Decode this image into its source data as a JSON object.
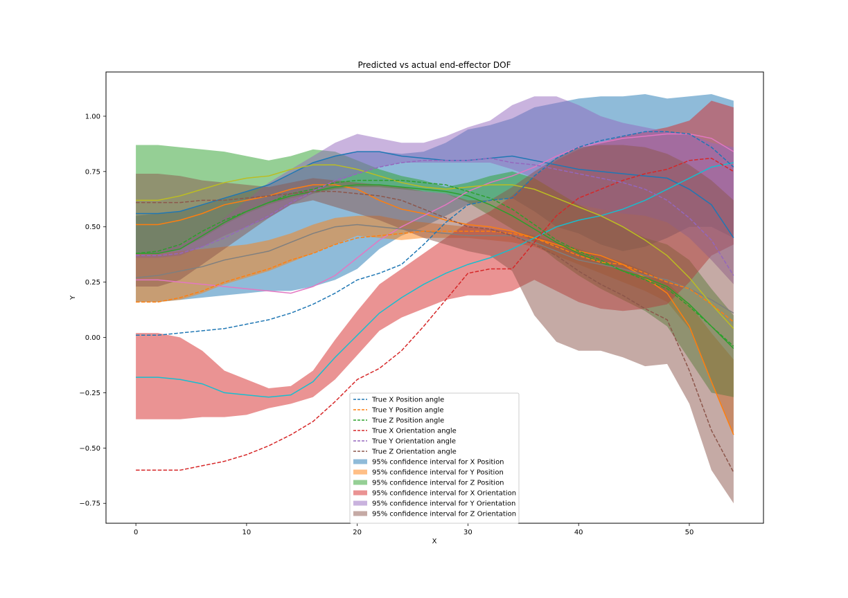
{
  "chart_data": {
    "type": "line",
    "title": "Predicted vs actual end-effector DOF",
    "xlabel": "X",
    "ylabel": "Y",
    "xlim": [
      -2.7,
      56.7
    ],
    "ylim": [
      -0.84,
      1.2
    ],
    "xticks": [
      0,
      10,
      20,
      30,
      40,
      50
    ],
    "yticks": [
      -0.75,
      -0.5,
      -0.25,
      0.0,
      0.25,
      0.5,
      0.75,
      1.0
    ],
    "xtick_labels": [
      "0",
      "10",
      "20",
      "30",
      "40",
      "50"
    ],
    "ytick_labels": [
      "−0.75",
      "−0.50",
      "−0.25",
      "0.00",
      "0.25",
      "0.50",
      "0.75",
      "1.00"
    ],
    "grid": false,
    "legend_placement": "lower-center",
    "x": [
      0,
      2,
      4,
      6,
      8,
      10,
      12,
      14,
      16,
      18,
      20,
      22,
      24,
      26,
      28,
      30,
      32,
      34,
      36,
      38,
      40,
      42,
      44,
      46,
      48,
      50,
      52,
      54
    ],
    "true_series": [
      {
        "name": "True X Position angle",
        "color": "#1f77b4",
        "values": [
          0.01,
          0.01,
          0.02,
          0.03,
          0.04,
          0.06,
          0.08,
          0.11,
          0.15,
          0.2,
          0.26,
          0.29,
          0.33,
          0.42,
          0.52,
          0.6,
          0.62,
          0.63,
          0.73,
          0.81,
          0.86,
          0.89,
          0.91,
          0.93,
          0.93,
          0.92,
          0.86,
          0.77
        ]
      },
      {
        "name": "True Y Position angle",
        "color": "#ff7f0e",
        "values": [
          0.16,
          0.16,
          0.18,
          0.21,
          0.25,
          0.28,
          0.31,
          0.35,
          0.38,
          0.42,
          0.45,
          0.46,
          0.47,
          0.48,
          0.48,
          0.48,
          0.48,
          0.47,
          0.45,
          0.41,
          0.37,
          0.34,
          0.33,
          0.29,
          0.25,
          0.22,
          0.15,
          0.07
        ]
      },
      {
        "name": "True Z Position angle",
        "color": "#2ca02c",
        "values": [
          0.38,
          0.39,
          0.42,
          0.48,
          0.53,
          0.57,
          0.61,
          0.65,
          0.67,
          0.7,
          0.71,
          0.71,
          0.71,
          0.7,
          0.69,
          0.66,
          0.63,
          0.58,
          0.51,
          0.44,
          0.39,
          0.35,
          0.3,
          0.26,
          0.22,
          0.14,
          0.05,
          -0.04
        ]
      },
      {
        "name": "True X Orientation angle",
        "color": "#d62728",
        "values": [
          -0.6,
          -0.6,
          -0.6,
          -0.58,
          -0.56,
          -0.53,
          -0.49,
          -0.44,
          -0.38,
          -0.29,
          -0.19,
          -0.14,
          -0.06,
          0.05,
          0.17,
          0.29,
          0.31,
          0.31,
          0.43,
          0.55,
          0.63,
          0.67,
          0.71,
          0.74,
          0.76,
          0.8,
          0.81,
          0.75
        ]
      },
      {
        "name": "True Y Orientation angle",
        "color": "#9467bd",
        "values": [
          0.37,
          0.37,
          0.38,
          0.41,
          0.45,
          0.5,
          0.55,
          0.61,
          0.66,
          0.71,
          0.74,
          0.77,
          0.79,
          0.8,
          0.8,
          0.8,
          0.81,
          0.79,
          0.78,
          0.76,
          0.74,
          0.72,
          0.7,
          0.67,
          0.62,
          0.54,
          0.44,
          0.28
        ]
      },
      {
        "name": "True Z Orientation angle",
        "color": "#8c564b",
        "values": [
          0.61,
          0.61,
          0.61,
          0.62,
          0.62,
          0.63,
          0.64,
          0.65,
          0.66,
          0.66,
          0.65,
          0.64,
          0.62,
          0.58,
          0.54,
          0.5,
          0.49,
          0.46,
          0.42,
          0.37,
          0.3,
          0.24,
          0.19,
          0.13,
          0.08,
          -0.15,
          -0.42,
          -0.61
        ]
      }
    ],
    "predicted_series": [
      {
        "color": "#1f77b4",
        "values": [
          0.56,
          0.56,
          0.57,
          0.6,
          0.63,
          0.66,
          0.69,
          0.74,
          0.79,
          0.82,
          0.84,
          0.84,
          0.82,
          0.81,
          0.8,
          0.8,
          0.81,
          0.82,
          0.8,
          0.78,
          0.76,
          0.75,
          0.74,
          0.73,
          0.72,
          0.67,
          0.6,
          0.45
        ]
      },
      {
        "color": "#ff7f0e",
        "values": [
          0.51,
          0.51,
          0.53,
          0.56,
          0.6,
          0.62,
          0.64,
          0.67,
          0.69,
          0.69,
          0.67,
          0.62,
          0.58,
          0.56,
          0.53,
          0.51,
          0.5,
          0.48,
          0.45,
          0.42,
          0.39,
          0.37,
          0.33,
          0.27,
          0.2,
          0.05,
          -0.2,
          -0.44
        ]
      },
      {
        "color": "#2ca02c",
        "values": [
          0.38,
          0.38,
          0.4,
          0.46,
          0.52,
          0.57,
          0.61,
          0.64,
          0.66,
          0.68,
          0.69,
          0.69,
          0.68,
          0.67,
          0.66,
          0.64,
          0.6,
          0.55,
          0.49,
          0.43,
          0.38,
          0.34,
          0.3,
          0.27,
          0.23,
          0.15,
          0.05,
          -0.05
        ]
      },
      {
        "color": "#17becf",
        "values": [
          -0.18,
          -0.18,
          -0.19,
          -0.21,
          -0.25,
          -0.26,
          -0.27,
          -0.26,
          -0.2,
          -0.09,
          0.01,
          0.11,
          0.18,
          0.24,
          0.29,
          0.33,
          0.36,
          0.4,
          0.45,
          0.5,
          0.53,
          0.55,
          0.58,
          0.62,
          0.67,
          0.72,
          0.77,
          0.79
        ]
      },
      {
        "color": "#e377c2",
        "values": [
          0.26,
          0.26,
          0.25,
          0.24,
          0.23,
          0.22,
          0.21,
          0.2,
          0.23,
          0.28,
          0.36,
          0.44,
          0.5,
          0.55,
          0.6,
          0.66,
          0.7,
          0.73,
          0.77,
          0.82,
          0.86,
          0.88,
          0.9,
          0.91,
          0.92,
          0.92,
          0.9,
          0.84
        ]
      },
      {
        "color": "#7f7f7f",
        "values": [
          0.27,
          0.28,
          0.3,
          0.32,
          0.35,
          0.37,
          0.39,
          0.43,
          0.47,
          0.5,
          0.51,
          0.5,
          0.49,
          0.48,
          0.47,
          0.46,
          0.46,
          0.46,
          0.43,
          0.39,
          0.35,
          0.33,
          0.31,
          0.28,
          0.26,
          0.22,
          0.17,
          0.11
        ]
      },
      {
        "color": "#bcbd22",
        "values": [
          0.62,
          0.62,
          0.64,
          0.67,
          0.7,
          0.72,
          0.73,
          0.76,
          0.78,
          0.78,
          0.76,
          0.73,
          0.7,
          0.68,
          0.67,
          0.68,
          0.69,
          0.69,
          0.67,
          0.63,
          0.59,
          0.55,
          0.5,
          0.44,
          0.37,
          0.27,
          0.15,
          0.04
        ]
      }
    ],
    "confidence_intervals": [
      {
        "name": "95% confidence interval for X Position",
        "color": "#1f77b4",
        "lower": [
          0.16,
          0.16,
          0.17,
          0.18,
          0.19,
          0.2,
          0.21,
          0.21,
          0.23,
          0.26,
          0.31,
          0.4,
          0.46,
          0.5,
          0.55,
          0.6,
          0.62,
          0.63,
          0.57,
          0.5,
          0.47,
          0.42,
          0.39,
          0.41,
          0.45,
          0.5,
          0.5,
          0.45
        ],
        "upper": [
          0.55,
          0.56,
          0.57,
          0.6,
          0.63,
          0.66,
          0.69,
          0.74,
          0.79,
          0.82,
          0.84,
          0.84,
          0.83,
          0.84,
          0.88,
          0.94,
          0.96,
          0.99,
          1.04,
          1.06,
          1.08,
          1.09,
          1.09,
          1.1,
          1.08,
          1.09,
          1.1,
          1.07
        ]
      },
      {
        "name": "95% confidence interval for Y Position",
        "color": "#ff7f0e",
        "lower": [
          0.16,
          0.16,
          0.17,
          0.2,
          0.24,
          0.27,
          0.3,
          0.34,
          0.38,
          0.42,
          0.46,
          0.45,
          0.44,
          0.45,
          0.45,
          0.45,
          0.44,
          0.43,
          0.41,
          0.37,
          0.33,
          0.29,
          0.25,
          0.21,
          0.16,
          0.04,
          -0.2,
          -0.44
        ],
        "upper": [
          0.38,
          0.38,
          0.39,
          0.4,
          0.41,
          0.42,
          0.44,
          0.47,
          0.51,
          0.54,
          0.55,
          0.55,
          0.53,
          0.52,
          0.51,
          0.5,
          0.49,
          0.48,
          0.46,
          0.43,
          0.4,
          0.37,
          0.34,
          0.3,
          0.25,
          0.15,
          0.02,
          -0.1
        ]
      },
      {
        "name": "95% confidence interval for Z Position",
        "color": "#2ca02c",
        "lower": [
          0.38,
          0.38,
          0.4,
          0.45,
          0.51,
          0.56,
          0.6,
          0.63,
          0.65,
          0.67,
          0.68,
          0.68,
          0.67,
          0.66,
          0.65,
          0.61,
          0.55,
          0.49,
          0.43,
          0.35,
          0.28,
          0.22,
          0.17,
          0.12,
          0.05,
          -0.1,
          -0.25,
          -0.27
        ],
        "upper": [
          0.87,
          0.87,
          0.86,
          0.85,
          0.84,
          0.82,
          0.8,
          0.82,
          0.85,
          0.84,
          0.8,
          0.76,
          0.73,
          0.71,
          0.68,
          0.7,
          0.73,
          0.75,
          0.72,
          0.66,
          0.6,
          0.55,
          0.5,
          0.45,
          0.42,
          0.35,
          0.22,
          0.1
        ]
      },
      {
        "name": "95% confidence interval for X Orientation",
        "color": "#d62728",
        "lower": [
          -0.37,
          -0.37,
          -0.37,
          -0.36,
          -0.36,
          -0.35,
          -0.32,
          -0.3,
          -0.27,
          -0.19,
          -0.08,
          0.03,
          0.09,
          0.13,
          0.17,
          0.19,
          0.19,
          0.21,
          0.26,
          0.21,
          0.16,
          0.13,
          0.12,
          0.13,
          0.15,
          0.25,
          0.37,
          0.42
        ],
        "upper": [
          0.02,
          0.02,
          0.0,
          -0.06,
          -0.15,
          -0.19,
          -0.23,
          -0.22,
          -0.15,
          -0.01,
          0.12,
          0.24,
          0.31,
          0.38,
          0.45,
          0.52,
          0.57,
          0.64,
          0.73,
          0.8,
          0.85,
          0.88,
          0.91,
          0.93,
          0.95,
          0.98,
          1.07,
          1.04
        ]
      },
      {
        "name": "95% confidence interval for Y Orientation",
        "color": "#9467bd",
        "lower": [
          0.36,
          0.36,
          0.37,
          0.41,
          0.46,
          0.5,
          0.54,
          0.6,
          0.65,
          0.7,
          0.74,
          0.77,
          0.79,
          0.79,
          0.79,
          0.79,
          0.79,
          0.76,
          0.72,
          0.66,
          0.6,
          0.58,
          0.56,
          0.55,
          0.52,
          0.45,
          0.35,
          0.24
        ],
        "upper": [
          0.38,
          0.39,
          0.42,
          0.47,
          0.54,
          0.62,
          0.7,
          0.76,
          0.82,
          0.88,
          0.92,
          0.9,
          0.88,
          0.88,
          0.91,
          0.95,
          0.98,
          1.05,
          1.09,
          1.09,
          1.05,
          1.0,
          0.97,
          0.95,
          0.93,
          0.92,
          0.88,
          0.86
        ]
      },
      {
        "name": "95% confidence interval for Z Orientation",
        "color": "#8c564b",
        "lower": [
          0.23,
          0.23,
          0.26,
          0.33,
          0.4,
          0.47,
          0.54,
          0.6,
          0.62,
          0.59,
          0.56,
          0.53,
          0.49,
          0.45,
          0.42,
          0.39,
          0.37,
          0.3,
          0.1,
          -0.02,
          -0.06,
          -0.06,
          -0.09,
          -0.13,
          -0.12,
          -0.3,
          -0.6,
          -0.75
        ],
        "upper": [
          0.74,
          0.74,
          0.73,
          0.71,
          0.7,
          0.69,
          0.68,
          0.7,
          0.72,
          0.71,
          0.7,
          0.69,
          0.68,
          0.66,
          0.65,
          0.62,
          0.62,
          0.68,
          0.75,
          0.81,
          0.86,
          0.87,
          0.87,
          0.86,
          0.83,
          0.78,
          0.71,
          0.62
        ]
      }
    ]
  }
}
